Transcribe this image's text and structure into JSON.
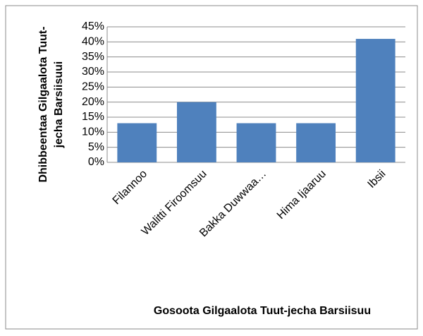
{
  "chart_data": {
    "type": "bar",
    "xlabel": "Gosoota Gilgaalota Tuut-jecha Barsiisuu",
    "ylabel": [
      "Dhibbeentaa Gilgaalota Tuut-",
      "jecha Barsiisuui"
    ],
    "categories": [
      "Filannoo",
      "Walitti Firoomsuu",
      "Bakka Duwwaa…",
      "Hima Ijaaruu",
      "Ibsii"
    ],
    "values": [
      13,
      20,
      13,
      13,
      41
    ],
    "color": "#4f81bd",
    "ylim": [
      0,
      45
    ],
    "yticks": [
      {
        "value": 0,
        "label": "0%"
      },
      {
        "value": 5,
        "label": "5%"
      },
      {
        "value": 10,
        "label": "10%"
      },
      {
        "value": 15,
        "label": "15%"
      },
      {
        "value": 20,
        "label": "20%"
      },
      {
        "value": 25,
        "label": "25%"
      },
      {
        "value": 30,
        "label": "30%"
      },
      {
        "value": 35,
        "label": "35%"
      },
      {
        "value": 40,
        "label": "40%"
      },
      {
        "value": 45,
        "label": "45%"
      }
    ],
    "grid": true
  }
}
